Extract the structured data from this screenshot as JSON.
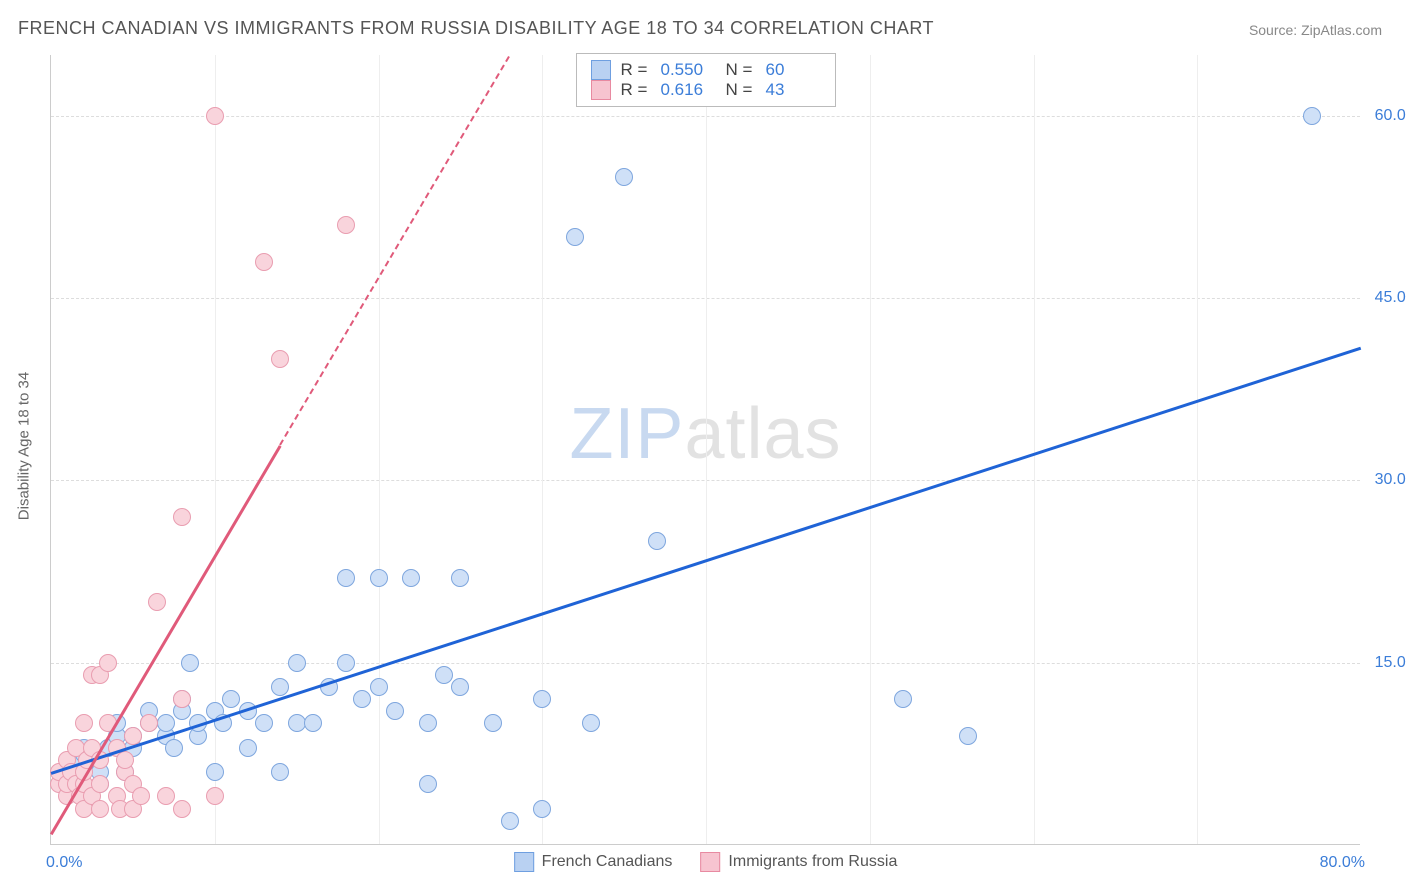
{
  "title": "FRENCH CANADIAN VS IMMIGRANTS FROM RUSSIA DISABILITY AGE 18 TO 34 CORRELATION CHART",
  "source": "Source: ZipAtlas.com",
  "ylabel": "Disability Age 18 to 34",
  "watermark": {
    "a": "ZIP",
    "b": "atlas",
    "color_a": "#c8d9f0",
    "color_b": "#e2e2e2"
  },
  "chart": {
    "type": "scatter",
    "background_color": "#ffffff",
    "grid_color": "#dddddd",
    "xlim": [
      0,
      80
    ],
    "ylim": [
      0,
      65
    ],
    "x_ticks": {
      "min": "0.0%",
      "max": "80.0%"
    },
    "y_ticks": [
      {
        "v": 15,
        "label": "15.0%"
      },
      {
        "v": 30,
        "label": "30.0%"
      },
      {
        "v": 45,
        "label": "45.0%"
      },
      {
        "v": 60,
        "label": "60.0%"
      }
    ],
    "x_gridlines": [
      10,
      20,
      30,
      40,
      50,
      60,
      70
    ],
    "marker_radius": 9,
    "marker_stroke_width": 1.5,
    "series": [
      {
        "name": "French Canadians",
        "fill": "#cfe0f7",
        "stroke": "#7ea6de",
        "legend_fill": "#b9d1f2",
        "legend_stroke": "#6f9fe0",
        "R": "0.550",
        "N": "60",
        "trend": {
          "x1": 0,
          "y1": 6,
          "x2": 80,
          "y2": 41,
          "color": "#1f63d6",
          "solid_until_x": 80
        },
        "points": [
          [
            1,
            5
          ],
          [
            1,
            6
          ],
          [
            1.5,
            7
          ],
          [
            2,
            7.5
          ],
          [
            2,
            8
          ],
          [
            2.5,
            7
          ],
          [
            3,
            5
          ],
          [
            3,
            6
          ],
          [
            3.5,
            8
          ],
          [
            4,
            9
          ],
          [
            4,
            10
          ],
          [
            4.5,
            6
          ],
          [
            5,
            8
          ],
          [
            5,
            9
          ],
          [
            6,
            10
          ],
          [
            6,
            11
          ],
          [
            7,
            9
          ],
          [
            7,
            10
          ],
          [
            7.5,
            8
          ],
          [
            8,
            11
          ],
          [
            8,
            12
          ],
          [
            8.5,
            15
          ],
          [
            9,
            9
          ],
          [
            9,
            10
          ],
          [
            10,
            6
          ],
          [
            10,
            11
          ],
          [
            10.5,
            10
          ],
          [
            11,
            12
          ],
          [
            12,
            8
          ],
          [
            12,
            11
          ],
          [
            13,
            10
          ],
          [
            14,
            6
          ],
          [
            14,
            13
          ],
          [
            15,
            10
          ],
          [
            15,
            15
          ],
          [
            16,
            10
          ],
          [
            17,
            13
          ],
          [
            18,
            15
          ],
          [
            18,
            22
          ],
          [
            19,
            12
          ],
          [
            20,
            13
          ],
          [
            20,
            22
          ],
          [
            21,
            11
          ],
          [
            22,
            22
          ],
          [
            23,
            5
          ],
          [
            23,
            10
          ],
          [
            24,
            14
          ],
          [
            25,
            13
          ],
          [
            25,
            22
          ],
          [
            27,
            10
          ],
          [
            28,
            2
          ],
          [
            30,
            3
          ],
          [
            30,
            12
          ],
          [
            32,
            50
          ],
          [
            33,
            10
          ],
          [
            35,
            55
          ],
          [
            37,
            25
          ],
          [
            52,
            12
          ],
          [
            56,
            9
          ],
          [
            77,
            60
          ]
        ]
      },
      {
        "name": "Immigrants from Russia",
        "fill": "#f9d4dc",
        "stroke": "#e99db0",
        "legend_fill": "#f7c4d0",
        "legend_stroke": "#e88aa1",
        "R": "0.616",
        "N": "43",
        "trend": {
          "x1": 0,
          "y1": 1,
          "x2": 28,
          "y2": 65,
          "color": "#e05a7a",
          "solid_until_x": 14
        },
        "points": [
          [
            0.5,
            5
          ],
          [
            0.5,
            6
          ],
          [
            1,
            4
          ],
          [
            1,
            5
          ],
          [
            1,
            7
          ],
          [
            1.2,
            6
          ],
          [
            1.5,
            5
          ],
          [
            1.5,
            8
          ],
          [
            1.8,
            4
          ],
          [
            2,
            3
          ],
          [
            2,
            5
          ],
          [
            2,
            6
          ],
          [
            2,
            10
          ],
          [
            2.2,
            7
          ],
          [
            2.5,
            4
          ],
          [
            2.5,
            8
          ],
          [
            2.5,
            14
          ],
          [
            3,
            3
          ],
          [
            3,
            5
          ],
          [
            3,
            7
          ],
          [
            3,
            14
          ],
          [
            3.5,
            10
          ],
          [
            3.5,
            15
          ],
          [
            4,
            4
          ],
          [
            4,
            8
          ],
          [
            4.2,
            3
          ],
          [
            4.5,
            6
          ],
          [
            4.5,
            7
          ],
          [
            5,
            3
          ],
          [
            5,
            5
          ],
          [
            5,
            9
          ],
          [
            5.5,
            4
          ],
          [
            6,
            10
          ],
          [
            6.5,
            20
          ],
          [
            7,
            4
          ],
          [
            8,
            3
          ],
          [
            8,
            12
          ],
          [
            8,
            27
          ],
          [
            10,
            4
          ],
          [
            10,
            60
          ],
          [
            13,
            48
          ],
          [
            14,
            40
          ],
          [
            18,
            51
          ]
        ]
      }
    ]
  }
}
